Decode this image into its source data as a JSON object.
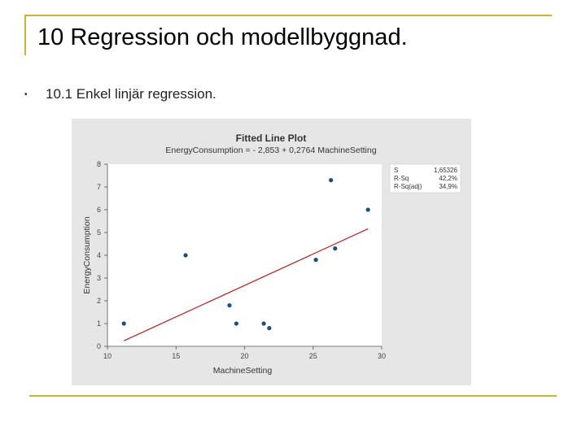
{
  "slide": {
    "title": "10 Regression och modellbyggnad.",
    "bullet": "•",
    "subtitle": "10.1 Enkel linjär regression."
  },
  "colors": {
    "accent_rule": "#c8b432",
    "plot_background": "#e6e6e6",
    "points": "#1f4e79",
    "fit_line": "#b22222"
  },
  "chart_data": {
    "type": "scatter",
    "title": "Fitted Line Plot",
    "subtitle": "EnergyConsumption = - 2,853 + 0,2764 MachineSetting",
    "xlabel": "MachineSetting",
    "ylabel": "EnergyConsumption",
    "xlim": [
      10,
      30
    ],
    "ylim": [
      0,
      8
    ],
    "xticks": [
      "10",
      "15",
      "20",
      "25",
      "30"
    ],
    "yticks": [
      "0",
      "1",
      "2",
      "3",
      "4",
      "5",
      "6",
      "7",
      "8"
    ],
    "points": [
      {
        "x": 11.2,
        "y": 1.0
      },
      {
        "x": 15.7,
        "y": 4.0
      },
      {
        "x": 18.9,
        "y": 1.8
      },
      {
        "x": 19.4,
        "y": 1.0
      },
      {
        "x": 21.4,
        "y": 1.0
      },
      {
        "x": 21.8,
        "y": 0.8
      },
      {
        "x": 25.2,
        "y": 3.8
      },
      {
        "x": 26.3,
        "y": 7.3
      },
      {
        "x": 26.6,
        "y": 4.3
      },
      {
        "x": 29.0,
        "y": 6.0
      }
    ],
    "fit": {
      "intercept": -2.853,
      "slope": 0.2764,
      "x_range": [
        11.2,
        29.0
      ]
    },
    "stats": [
      {
        "label": "S",
        "value": "1,65326"
      },
      {
        "label": "R-Sq",
        "value": "42,2%"
      },
      {
        "label": "R-Sq(adj)",
        "value": "34,9%"
      }
    ],
    "grid": false
  }
}
